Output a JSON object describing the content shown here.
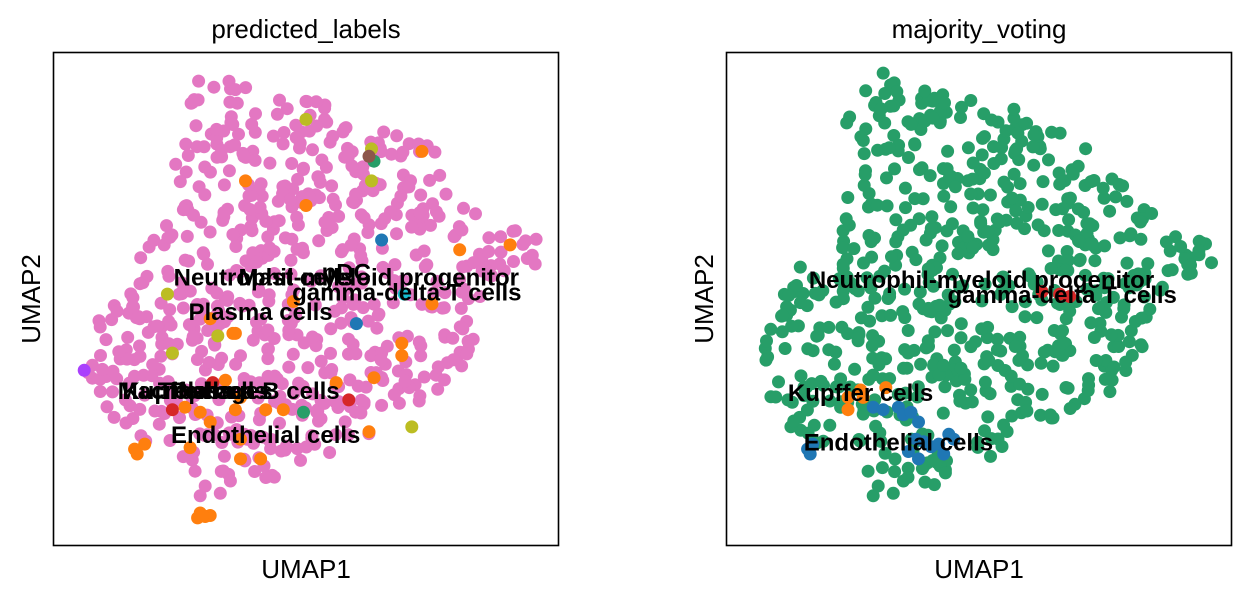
{
  "chart_data": [
    {
      "type": "scatter",
      "title": "predicted_labels",
      "xlabel": "UMAP1",
      "ylabel": "UMAP2",
      "xlim": [
        0,
        100
      ],
      "ylim": [
        0,
        100
      ],
      "grid": false,
      "xticks": [],
      "yticks": [],
      "background_color": "#e377c2",
      "background_seed": 7,
      "background_count": 650,
      "clusters": [
        {
          "color": "#ff7f0e",
          "points": [
            [
              16,
              19.5
            ],
            [
              18,
              20.5
            ],
            [
              16.5,
              18.5
            ],
            [
              29,
              6.5
            ],
            [
              30,
              5.8
            ],
            [
              28.5,
              5.5
            ],
            [
              31,
              6
            ],
            [
              29.5,
              6
            ],
            [
              27,
              19.8
            ],
            [
              29,
              27
            ],
            [
              31,
              25
            ],
            [
              37,
              17.5
            ],
            [
              41,
              17.5
            ],
            [
              36,
              27.5
            ],
            [
              37,
              21.5
            ],
            [
              42,
              27.5
            ],
            [
              37,
              30
            ],
            [
              35.5,
              43
            ],
            [
              50,
              69
            ],
            [
              73,
              80
            ],
            [
              69,
              41
            ],
            [
              69,
              38.5
            ],
            [
              63.5,
              34
            ],
            [
              56,
              33
            ],
            [
              45.5,
              27.5
            ],
            [
              31,
              46
            ],
            [
              38,
              74
            ],
            [
              36,
              43
            ],
            [
              47.5,
              49.5
            ],
            [
              75,
              49
            ],
            [
              80.5,
              60
            ],
            [
              90.5,
              61
            ],
            [
              62.5,
              23
            ],
            [
              34,
              33.5
            ],
            [
              26,
              28
            ]
          ]
        },
        {
          "color": "#1f77b4",
          "points": [
            [
              65,
              62
            ],
            [
              60,
              45
            ]
          ]
        },
        {
          "color": "#279e68",
          "points": [
            [
              63.5,
              78
            ],
            [
              49.5,
              27
            ]
          ]
        },
        {
          "color": "#d62728",
          "points": [
            [
              23.5,
              27.5
            ],
            [
              31.5,
              33
            ],
            [
              58.5,
              29.5
            ]
          ]
        },
        {
          "color": "#bcbd22",
          "points": [
            [
              63,
              80.5
            ],
            [
              50,
              86.5
            ],
            [
              32.5,
              42.5
            ],
            [
              23.5,
              39
            ],
            [
              22.5,
              51
            ],
            [
              71,
              24
            ],
            [
              63,
              74
            ]
          ]
        },
        {
          "color": "#17becf",
          "points": [
            [
              69.5,
              51
            ]
          ]
        },
        {
          "color": "#8c564b",
          "points": [
            [
              62.5,
              79
            ]
          ]
        },
        {
          "color": "#aa40fc",
          "points": [
            [
              6,
              35.5
            ]
          ]
        }
      ],
      "labels": [
        {
          "text": "Neutrophil-myeloid progenitor",
          "x": 58,
          "y": 54
        },
        {
          "text": "Mast cells",
          "x": 48,
          "y": 54
        },
        {
          "text": "pDC",
          "x": 58,
          "y": 55
        },
        {
          "text": "gamma-delta T cells",
          "x": 70,
          "y": 51
        },
        {
          "text": "Plasma cells",
          "x": 41,
          "y": 47
        },
        {
          "text": "Kupffer cells",
          "x": 28,
          "y": 31
        },
        {
          "text": "Macrophages",
          "x": 28,
          "y": 31
        },
        {
          "text": "T cells",
          "x": 28,
          "y": 31
        },
        {
          "text": "Plasma B cells",
          "x": 40,
          "y": 31
        },
        {
          "text": "Endothelial cells",
          "x": 42,
          "y": 22
        }
      ]
    },
    {
      "type": "scatter",
      "title": "majority_voting",
      "xlabel": "UMAP1",
      "ylabel": "UMAP2",
      "xlim": [
        0,
        100
      ],
      "ylim": [
        0,
        100
      ],
      "grid": false,
      "xticks": [],
      "yticks": [],
      "background_color": "#279e68",
      "background_seed": 11,
      "background_count": 650,
      "clusters": [
        {
          "color": "#ff7f0e",
          "points": [
            [
              24,
              30
            ],
            [
              26.5,
              31.5
            ],
            [
              31.5,
              32
            ],
            [
              24,
              27.5
            ],
            [
              27,
              30
            ]
          ]
        },
        {
          "color": "#1f77b4",
          "points": [
            [
              16,
              19.5
            ],
            [
              17,
              20.5
            ],
            [
              16.5,
              18.5
            ],
            [
              29,
              28
            ],
            [
              31,
              27.5
            ],
            [
              34,
              28
            ],
            [
              35,
              26.5
            ],
            [
              36.5,
              27
            ],
            [
              38,
              25
            ],
            [
              37.5,
              21.5
            ],
            [
              39,
              21
            ],
            [
              40.5,
              20
            ],
            [
              42,
              20.5
            ],
            [
              44,
              22.5
            ],
            [
              45,
              21.5
            ],
            [
              43,
              18.5
            ],
            [
              38,
              17.5
            ],
            [
              36,
              19
            ]
          ]
        },
        {
          "color": "#d62728",
          "points": [
            [
              62.5,
              51.5
            ],
            [
              66,
              51
            ],
            [
              68,
              50.5
            ]
          ]
        }
      ],
      "labels": [
        {
          "text": "Neutrophil-myeloid progenitor",
          "x": 50.5,
          "y": 53.5
        },
        {
          "text": "gamma-delta T cells",
          "x": 66.5,
          "y": 50.5
        },
        {
          "text": "Kupffer cells",
          "x": 26.5,
          "y": 30.5
        },
        {
          "text": "Endothelial cells",
          "x": 34,
          "y": 20.5
        }
      ]
    }
  ]
}
